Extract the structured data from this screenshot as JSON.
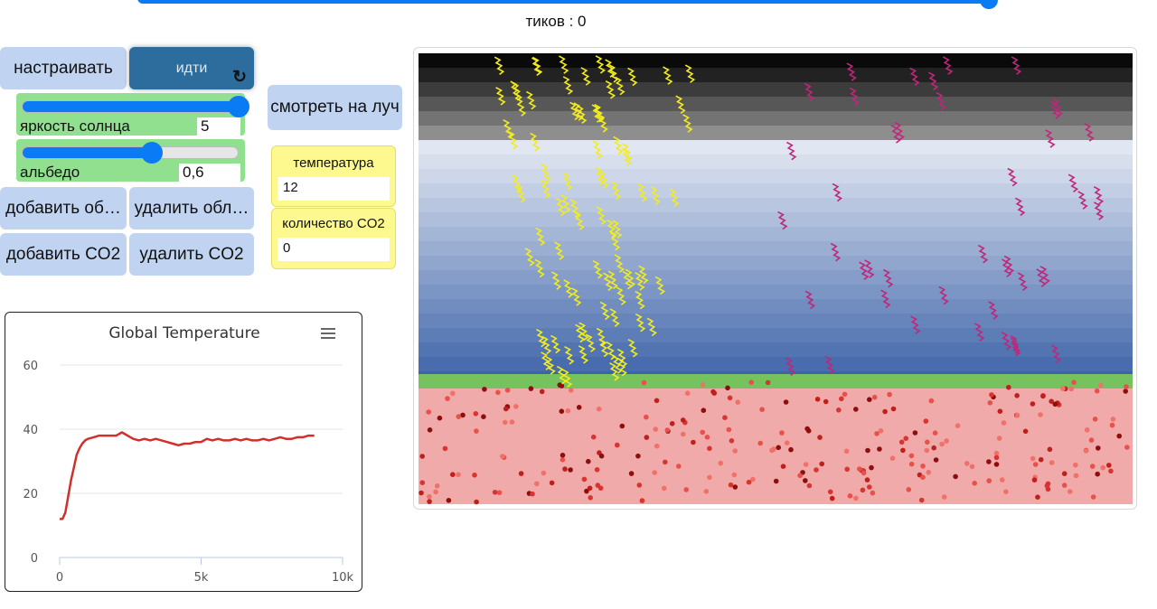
{
  "ticks": {
    "label": "тиков : 0"
  },
  "buttons": {
    "setup": "настраивать",
    "go": "идти",
    "watch_ray": "смотреть на луч",
    "add_cloud": "добавить об…",
    "remove_cloud": "удалить обл…",
    "add_co2": "добавить CO2",
    "remove_co2": "удалить CO2"
  },
  "sliders": {
    "sun_brightness": {
      "label": "яркость солнца",
      "value": "5",
      "level": 1.0
    },
    "albedo": {
      "label": "альбедо",
      "value": "0,6",
      "level": 0.6
    }
  },
  "monitors": {
    "temperature": {
      "label": "температура",
      "value": "12"
    },
    "co2": {
      "label": "количество CO2",
      "value": "0"
    }
  },
  "colors": {
    "accent": "#0a7af5",
    "button": "#c0d4f1",
    "go_button": "#2c6d9e",
    "slider_bg": "#90e090",
    "monitor_bg": "#fdf98e",
    "sunray": "#f2ec1e",
    "infrared": "#c0267a",
    "ground": "#f0aaaa",
    "grass": "#76c25f",
    "chart_line": "#d0302c"
  },
  "icons": {
    "go_forever": "refresh-icon",
    "chart_menu": "hamburger-menu-icon"
  },
  "chart_data": {
    "type": "line",
    "title": "Global Temperature",
    "xlabel": "",
    "ylabel": "",
    "xlim": [
      0,
      10000
    ],
    "ylim": [
      0,
      60
    ],
    "xticks": [
      "0",
      "5k",
      "10k"
    ],
    "yticks": [
      "0",
      "20",
      "40",
      "60"
    ],
    "grid": true,
    "series": [
      {
        "x": [
          0,
          100,
          200,
          300,
          400,
          500,
          600,
          700,
          800,
          900,
          1000,
          1200,
          1400,
          1600,
          1800,
          2000,
          2200,
          2400,
          2600,
          2800,
          3000,
          3200,
          3400,
          3600,
          3800,
          4000,
          4200,
          4400,
          4600,
          4800,
          5000,
          5200,
          5400,
          5600,
          5800,
          6000,
          6200,
          6400,
          6600,
          6800,
          7000,
          7200,
          7400,
          7600,
          7800,
          8000,
          8200,
          8400,
          8600,
          8800,
          9000
        ],
        "y": [
          12,
          12,
          14,
          19,
          24,
          28,
          32,
          34,
          35.5,
          36.5,
          37,
          37.5,
          38,
          38,
          38,
          38,
          39,
          38,
          37,
          36.5,
          37,
          36.5,
          37,
          36.5,
          36,
          35.5,
          35,
          35.5,
          35.5,
          36,
          36,
          37,
          36.5,
          37,
          36.5,
          36.5,
          37,
          36.5,
          37,
          36.5,
          36.5,
          37,
          36.5,
          37,
          37.5,
          37,
          37,
          37.5,
          37.5,
          38,
          38
        ]
      }
    ]
  }
}
